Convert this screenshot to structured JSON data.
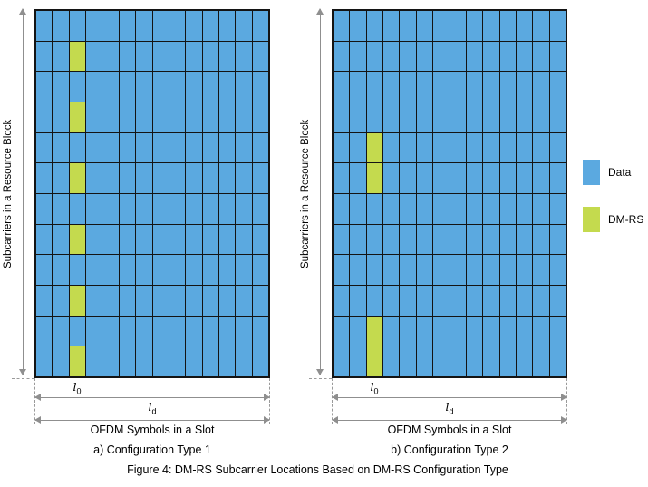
{
  "colors": {
    "data": "#5BA9E0",
    "dmrs": "#C4DA4E",
    "grid_line": "#141414",
    "annotation_gray": "#8F8F8F"
  },
  "panels": [
    {
      "y_axis_label": "Subcarriers in a Resource Block",
      "x_axis_label": "OFDM Symbols in a Slot",
      "l0": {
        "base": "l",
        "sub": "0"
      },
      "ld": {
        "base": "l",
        "sub": "d"
      },
      "caption": "a) Configuration Type 1",
      "grid": {
        "rows": 12,
        "cols": 14,
        "dmrs_col": 2,
        "dmrs_rows": [
          1,
          3,
          5,
          7,
          9,
          11
        ]
      }
    },
    {
      "y_axis_label": "Subcarriers in a Resource Block",
      "x_axis_label": "OFDM Symbols in a Slot",
      "l0": {
        "base": "l",
        "sub": "0"
      },
      "ld": {
        "base": "l",
        "sub": "d"
      },
      "caption": "b) Configuration Type 2",
      "grid": {
        "rows": 12,
        "cols": 14,
        "dmrs_col": 2,
        "dmrs_rows": [
          4,
          5,
          10,
          11
        ]
      }
    }
  ],
  "legend": {
    "items": [
      {
        "label": "Data",
        "color": "#5BA9E0"
      },
      {
        "label": "DM-RS",
        "color": "#C4DA4E"
      }
    ]
  },
  "figure_caption": "Figure 4: DM-RS Subcarrier Locations Based on DM-RS Configuration Type"
}
